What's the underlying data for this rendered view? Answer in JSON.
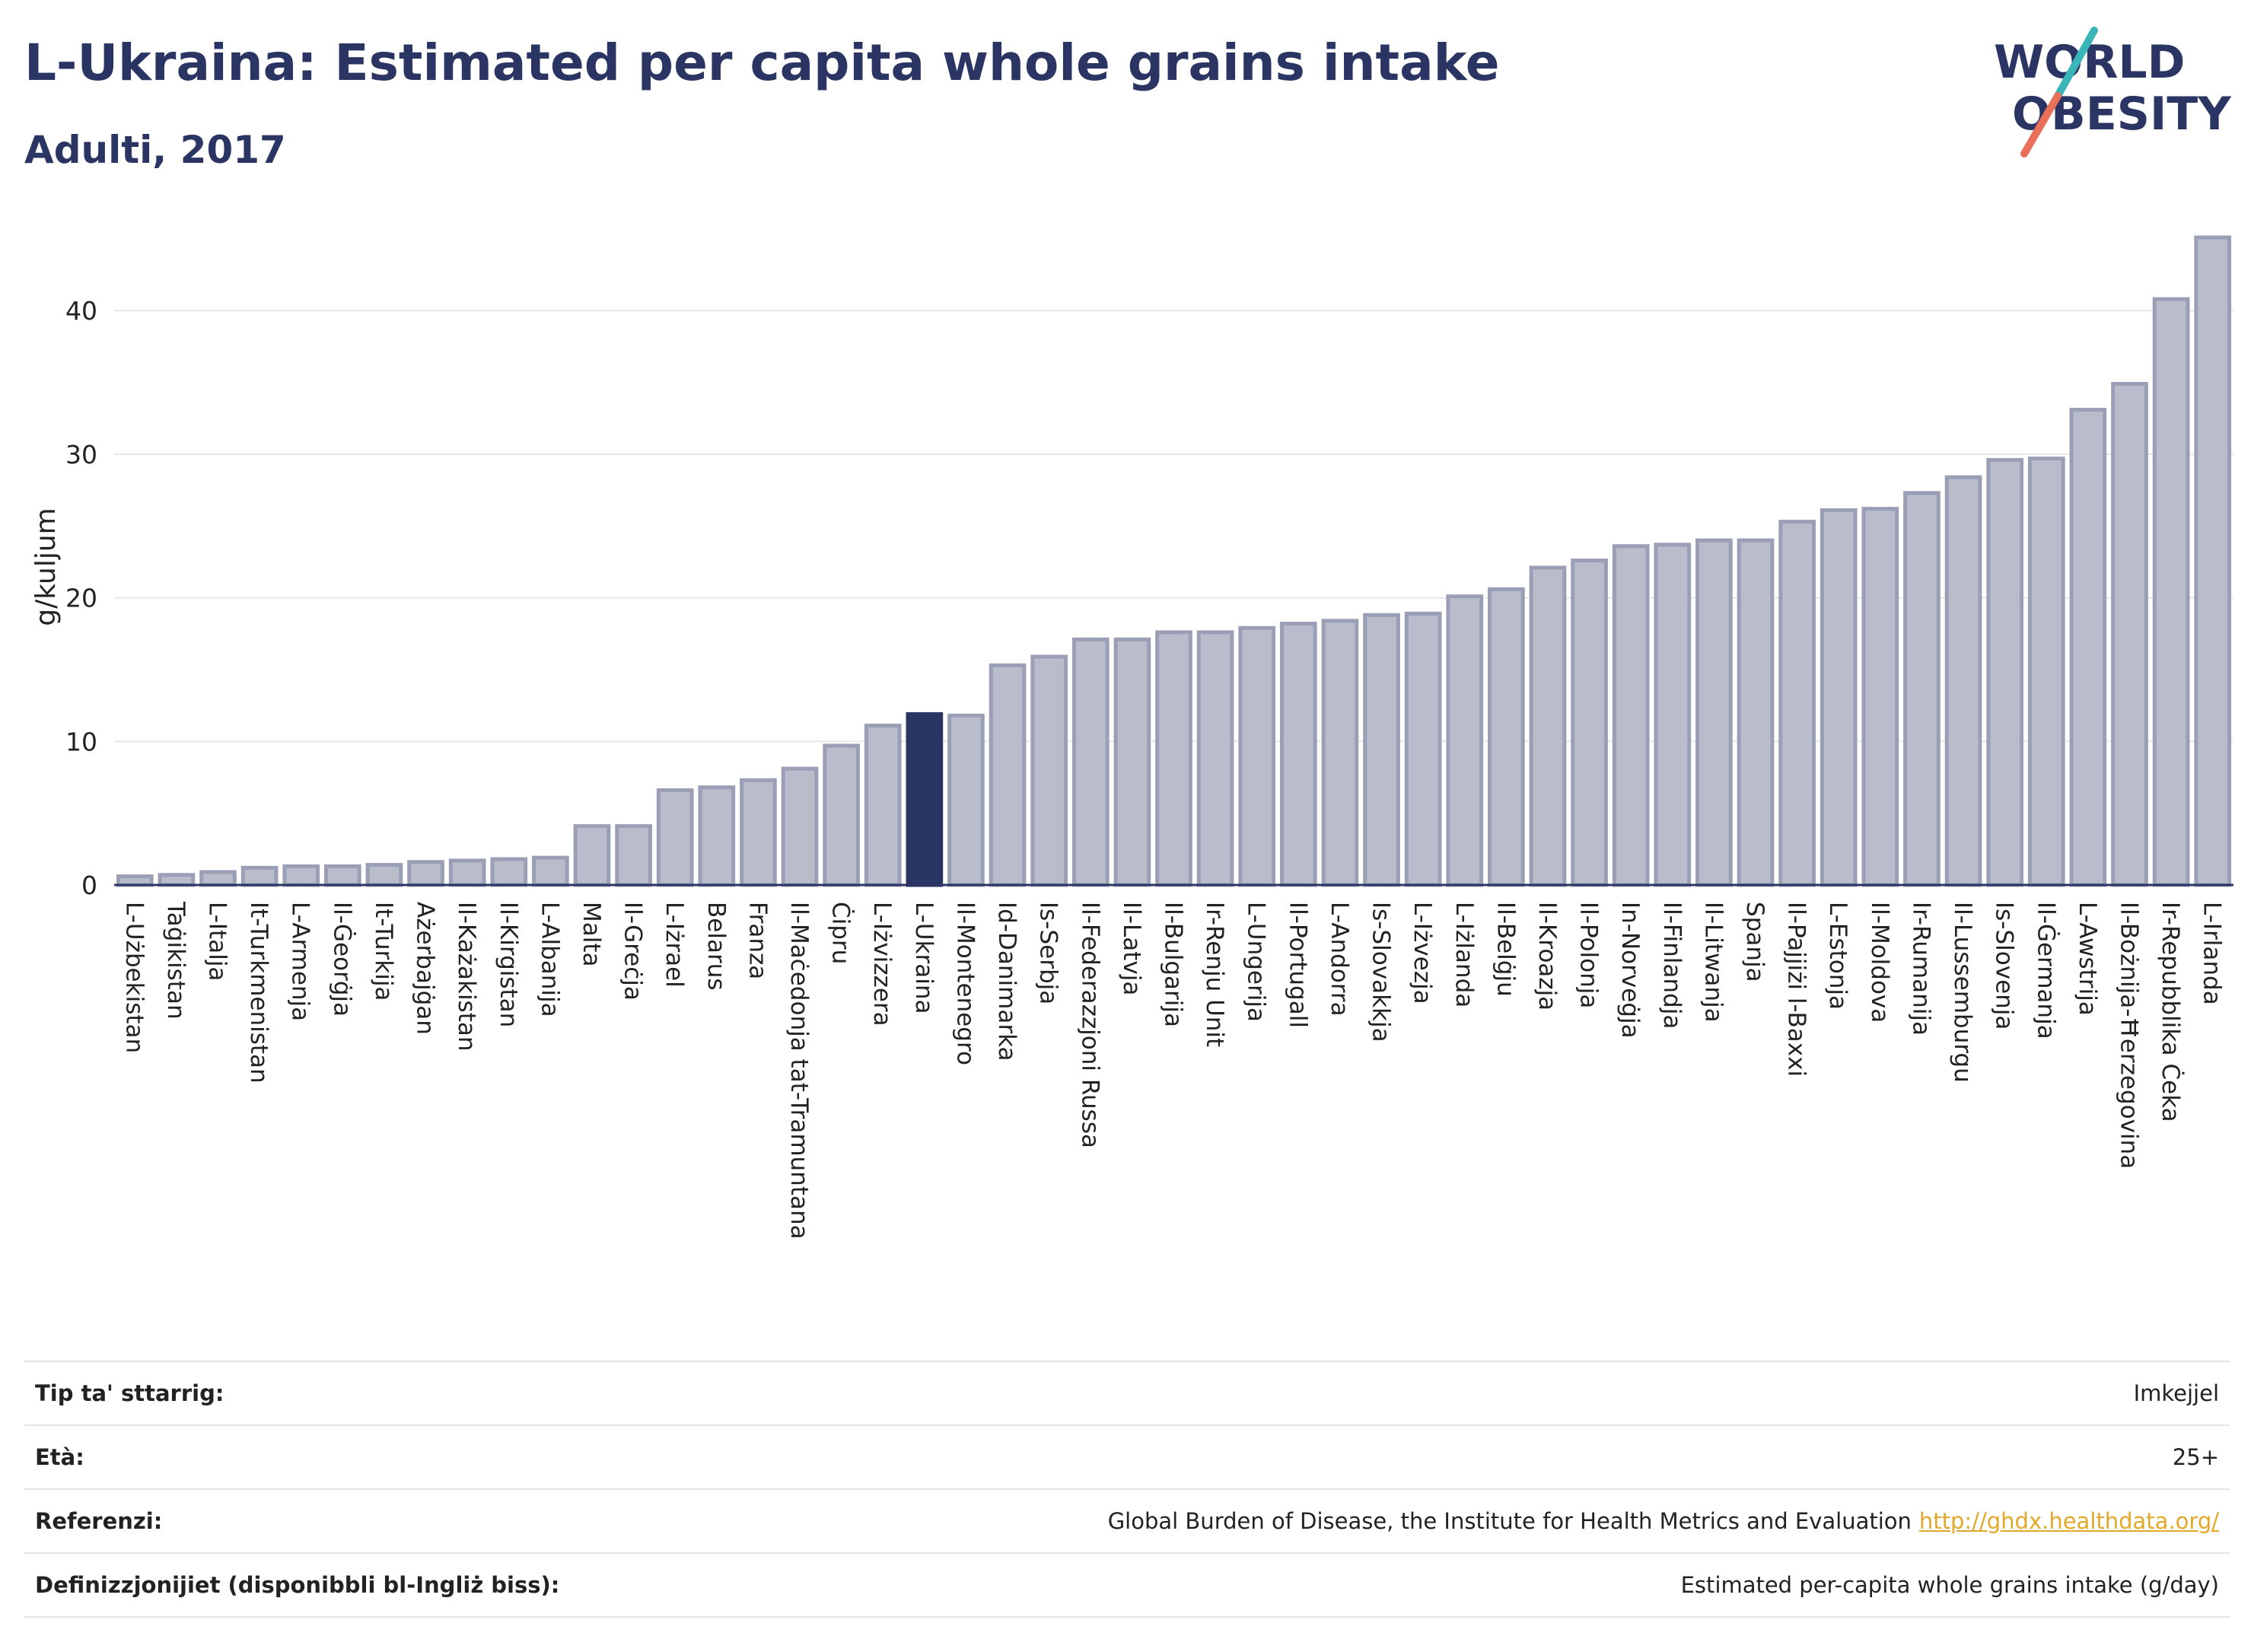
{
  "header": {
    "title": "L-Ukraina: Estimated per capita whole grains intake",
    "subtitle": "Adulti, 2017"
  },
  "logo": {
    "line1": "WORLD",
    "line2": "OBESITY",
    "colors": {
      "text": "#2b3563",
      "slash_top": "#3bb6b8",
      "slash_bottom": "#e8705a"
    }
  },
  "colors": {
    "bar": "#b9bccb",
    "bar_stroke": "#9a9fb5",
    "highlight": "#2b3563",
    "axis": "#2b3563",
    "grid": "#e6e6e6"
  },
  "chart_data": {
    "type": "bar",
    "title": "L-Ukraina: Estimated per capita whole grains intake",
    "subtitle": "Adulti, 2017",
    "xlabel": "",
    "ylabel": "g/kuljum",
    "ylim": [
      0,
      46
    ],
    "yticks": [
      0,
      10,
      20,
      30,
      40
    ],
    "grid": true,
    "highlight": "L-Ukraina",
    "categories": [
      "L-Użbekistan",
      "Taġikistan",
      "L-Italja",
      "It-Turkmenistan",
      "L-Armenja",
      "Il-Ġeorġja",
      "It-Turkija",
      "Ażerbajġan",
      "Il-Każakistan",
      "Il-Kirgistan",
      "L-Albanija",
      "Malta",
      "Il-Greċja",
      "L-Iżrael",
      "Belarus",
      "Franza",
      "Il-Maċedonja tat-Tramuntana",
      "Ċipru",
      "L-Iżvizzera",
      "L-Ukraina",
      "Il-Montenegro",
      "Id-Danimarka",
      "Is-Serbja",
      "Il-Federazzjoni Russa",
      "Il-Latvja",
      "Il-Bulgarija",
      "Ir-Renju Unit",
      "L-Ungerija",
      "Il-Portugall",
      "L-Andorra",
      "Is-Slovakkja",
      "L-Iżvezja",
      "L-Iżlanda",
      "Il-Belġju",
      "Il-Kroazja",
      "Il-Polonja",
      "In-Norveġja",
      "Il-Finlandja",
      "Il-Litwanja",
      "Spanja",
      "Il-Pajjiżi l-Baxxi",
      "L-Estonja",
      "Il-Moldova",
      "Ir-Rumanija",
      "Il-Lussemburgu",
      "Is-Slovenja",
      "Il-Ġermanja",
      "L-Awstrija",
      "Il-Bożnija-Ħerzegovina",
      "Ir-Repubblika Ċeka",
      "L-Irlanda"
    ],
    "values": [
      0.6,
      0.7,
      0.9,
      1.2,
      1.3,
      1.3,
      1.4,
      1.6,
      1.7,
      1.8,
      1.9,
      4.1,
      4.1,
      6.6,
      6.8,
      7.3,
      8.1,
      9.7,
      11.1,
      11.9,
      11.8,
      15.3,
      15.9,
      17.1,
      17.1,
      17.6,
      17.6,
      17.9,
      18.2,
      18.4,
      18.8,
      18.9,
      20.1,
      20.6,
      22.1,
      22.6,
      23.6,
      23.7,
      24.0,
      24.0,
      25.3,
      26.1,
      26.2,
      27.3,
      28.4,
      29.6,
      29.7,
      33.1,
      34.9,
      40.8,
      45.1
    ]
  },
  "meta": {
    "rows": [
      {
        "key": "Tip ta' sttarrig:",
        "value": "Imkejjel"
      },
      {
        "key": "Età:",
        "value": "25+"
      },
      {
        "key": "Referenzi:",
        "value": "Global Burden of Disease, the Institute for Health Metrics and Evaluation",
        "link": "http://ghdx.healthdata.org/"
      },
      {
        "key": "Definizzjonijiet (disponibbli bl-Ingliż biss):",
        "value": "Estimated per-capita whole grains intake (g/day)"
      }
    ]
  }
}
